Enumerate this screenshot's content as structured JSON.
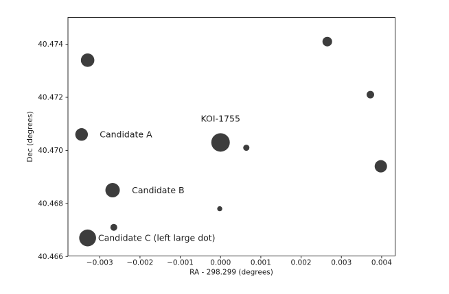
{
  "chart_data": {
    "type": "scatter",
    "title": "",
    "xlabel": "RA - 298.299 (degrees)",
    "ylabel": "Dec (degrees)",
    "xlim": [
      -0.003788,
      0.004334
    ],
    "ylim": [
      40.46602,
      40.47501
    ],
    "grid": false,
    "legend": null,
    "marker_color": "#3d3d3d",
    "axis_color": "#2b2b2b",
    "x_ticks": [
      {
        "value": -0.003,
        "label": "−0.003"
      },
      {
        "value": -0.002,
        "label": "−0.002"
      },
      {
        "value": -0.001,
        "label": "−0.001"
      },
      {
        "value": 0.0,
        "label": "0.000"
      },
      {
        "value": 0.001,
        "label": "0.001"
      },
      {
        "value": 0.002,
        "label": "0.002"
      },
      {
        "value": 0.003,
        "label": "0.003"
      },
      {
        "value": 0.004,
        "label": "0.004"
      }
    ],
    "y_ticks": [
      {
        "value": 40.466,
        "label": "40.466"
      },
      {
        "value": 40.468,
        "label": "40.468"
      },
      {
        "value": 40.47,
        "label": "40.470"
      },
      {
        "value": 40.472,
        "label": "40.472"
      },
      {
        "value": 40.474,
        "label": "40.474"
      }
    ],
    "points": [
      {
        "x": -0.0033,
        "y": 40.4734,
        "r": 9.8
      },
      {
        "x": -0.00345,
        "y": 40.4706,
        "r": 9.2,
        "name": "Candidate A"
      },
      {
        "x": 0.0,
        "y": 40.4703,
        "r": 13.5,
        "name": "KOI-1755"
      },
      {
        "x": 0.00064,
        "y": 40.4701,
        "r": 4.5
      },
      {
        "x": -0.00268,
        "y": 40.4685,
        "r": 10.5,
        "name": "Candidate B"
      },
      {
        "x": -0.00265,
        "y": 40.4671,
        "r": 5.0
      },
      {
        "x": -0.0033,
        "y": 40.4667,
        "r": 12.3,
        "name": "Candidate C"
      },
      {
        "x": 0.00265,
        "y": 40.4741,
        "r": 7.0
      },
      {
        "x": 0.00372,
        "y": 40.4721,
        "r": 5.5
      },
      {
        "x": 0.00398,
        "y": 40.4694,
        "r": 9.0
      },
      {
        "x": -2e-05,
        "y": 40.4678,
        "r": 3.7
      }
    ],
    "annotations": [
      {
        "text": "KOI-1755",
        "x": 0.0,
        "y": 40.4712,
        "anchor": "middle"
      },
      {
        "text": "Candidate A",
        "x": -0.003,
        "y": 40.4706,
        "anchor": "start"
      },
      {
        "text": "Candidate B",
        "x": -0.0022,
        "y": 40.4685,
        "anchor": "start"
      },
      {
        "text": "Candidate C (left large dot)",
        "x": -0.00304,
        "y": 40.4667,
        "anchor": "start"
      }
    ]
  }
}
